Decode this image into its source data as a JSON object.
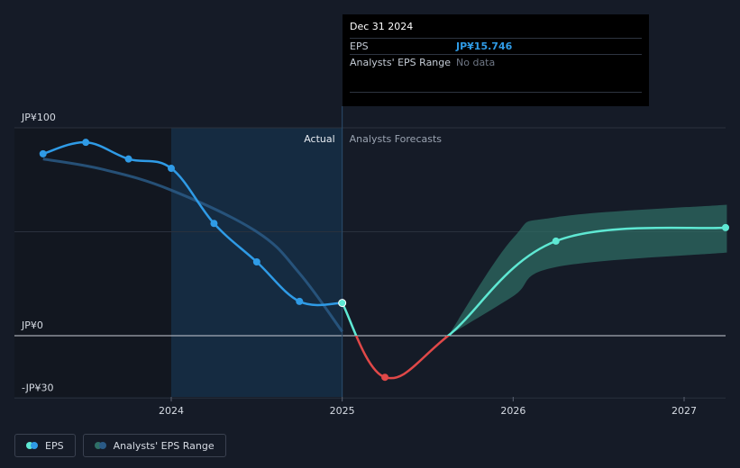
{
  "chart_data": {
    "type": "line",
    "x_axis": {
      "ticks": [
        2024,
        2025,
        2026,
        2027
      ],
      "tick_labels": [
        "2024",
        "2025",
        "2026",
        "2027"
      ],
      "range": [
        2023.0,
        2027.25
      ]
    },
    "y_axis": {
      "ticks": [
        100,
        0,
        -30
      ],
      "tick_labels": [
        "JP¥100",
        "JP¥0",
        "-JP¥30"
      ],
      "range": [
        -30,
        100
      ],
      "gridlines": [
        100,
        50,
        0,
        -30
      ]
    },
    "regions": {
      "actual_label": "Actual",
      "forecast_label": "Analysts Forecasts",
      "highlight_start": 2024.0,
      "divider": 2025.0
    },
    "series": [
      {
        "name": "EPS",
        "kind": "actual",
        "points": [
          {
            "x": 2023.25,
            "y": 87.5
          },
          {
            "x": 2023.5,
            "y": 93.0
          },
          {
            "x": 2023.75,
            "y": 85.0
          },
          {
            "x": 2024.0,
            "y": 80.5
          },
          {
            "x": 2024.25,
            "y": 54.0
          },
          {
            "x": 2024.5,
            "y": 35.5
          },
          {
            "x": 2024.75,
            "y": 16.5
          },
          {
            "x": 2025.0,
            "y": 15.746
          }
        ]
      },
      {
        "name": "EPS",
        "kind": "forecast",
        "points": [
          {
            "x": 2025.0,
            "y": 15.746
          },
          {
            "x": 2025.25,
            "y": -20.0
          },
          {
            "x": 2025.62,
            "y": 0.0
          },
          {
            "x": 2026.25,
            "y": 45.5
          },
          {
            "x": 2027.25,
            "y": 52.0
          }
        ]
      },
      {
        "name": "",
        "kind": "past-estimate",
        "points": [
          {
            "x": 2023.25,
            "y": 85.0
          },
          {
            "x": 2023.6,
            "y": 80.0
          },
          {
            "x": 2024.0,
            "y": 70.0
          },
          {
            "x": 2024.5,
            "y": 50.0
          },
          {
            "x": 2024.75,
            "y": 30.0
          },
          {
            "x": 2025.0,
            "y": 2.0
          }
        ]
      }
    ],
    "range_band": {
      "name": "Analysts' EPS Range",
      "points": [
        {
          "x": 2025.62,
          "low": 0.0,
          "high": 0.0
        },
        {
          "x": 2026.0,
          "low": 19.0,
          "high": 47.0
        },
        {
          "x": 2026.25,
          "low": 33.0,
          "high": 57.0
        },
        {
          "x": 2027.25,
          "low": 40.0,
          "high": 63.0
        }
      ]
    },
    "colors": {
      "eps_actual": "#2f9be6",
      "eps_forecast_positive": "#5ee8d3",
      "eps_forecast_negative": "#e04848",
      "range_band": "#2f6f66",
      "highlight": "#16314b",
      "past_estimate": "#2a5a86"
    },
    "legend": {
      "placement": "bottom-left",
      "items": [
        {
          "label": "EPS"
        },
        {
          "label": "Analysts' EPS Range"
        }
      ]
    }
  },
  "tooltip": {
    "date": "Dec 31 2024",
    "rows": [
      {
        "key": "EPS",
        "value": "JP¥15.746"
      },
      {
        "key": "Analysts' EPS Range",
        "value": "No data"
      }
    ]
  }
}
